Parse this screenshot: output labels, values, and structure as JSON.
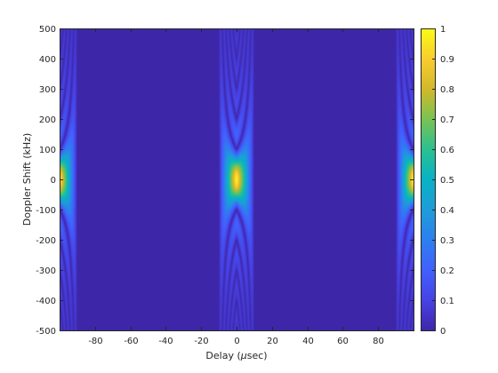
{
  "chart_data": {
    "type": "heatmap",
    "title": "",
    "xlabel_prefix": "Delay (",
    "xlabel_mu": "μ",
    "xlabel_suffix": "sec)",
    "ylabel": "Doppler Shift (kHz)",
    "xlim": [
      -100,
      100
    ],
    "ylim": [
      -500,
      500
    ],
    "x_ticks": [
      -80,
      -60,
      -40,
      -20,
      0,
      20,
      40,
      60,
      80
    ],
    "x_tick_labels": [
      "-80",
      "-60",
      "-40",
      "-20",
      "0",
      "20",
      "40",
      "60",
      "80"
    ],
    "y_ticks": [
      -500,
      -400,
      -300,
      -200,
      -100,
      0,
      100,
      200,
      300,
      400,
      500
    ],
    "y_tick_labels": [
      "-500",
      "-400",
      "-300",
      "-200",
      "-100",
      "0",
      "100",
      "200",
      "300",
      "400",
      "500"
    ],
    "colorbar": {
      "range": [
        0,
        1
      ],
      "ticks": [
        0,
        0.1,
        0.2,
        0.3,
        0.4,
        0.5,
        0.6,
        0.7,
        0.8,
        0.9,
        1
      ],
      "tick_labels": [
        "0",
        "0.1",
        "0.2",
        "0.3",
        "0.4",
        "0.5",
        "0.6",
        "0.7",
        "0.8",
        "0.9",
        "1"
      ],
      "colormap": "parula"
    },
    "peaks": [
      {
        "delay": -100,
        "doppler": 0,
        "value": 1
      },
      {
        "delay": 0,
        "doppler": 0,
        "value": 1
      },
      {
        "delay": 100,
        "doppler": 0,
        "value": 1
      }
    ],
    "pulse_width_usec": 10,
    "grid": false
  }
}
